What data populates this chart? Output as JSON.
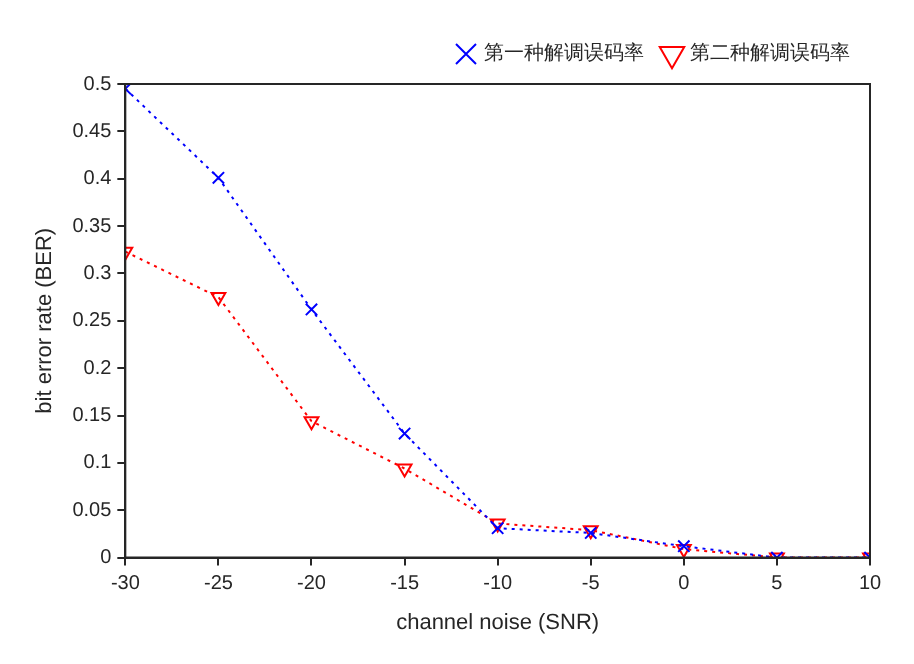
{
  "chart_data": {
    "type": "line",
    "xlabel": "channel noise (SNR)",
    "ylabel": "bit error rate (BER)",
    "x": [
      -30,
      -25,
      -20,
      -15,
      -10,
      -5,
      0,
      5,
      10
    ],
    "series": [
      {
        "name": "第一种解调误码率",
        "color": "#0000ff",
        "marker": "cross",
        "values": [
          0.495,
          0.401,
          0.262,
          0.131,
          0.031,
          0.026,
          0.012,
          0,
          0
        ]
      },
      {
        "name": "第二种解调误码率",
        "color": "#ff0000",
        "marker": "triangle",
        "values": [
          0.323,
          0.275,
          0.144,
          0.094,
          0.036,
          0.029,
          0.009,
          0,
          0
        ]
      }
    ],
    "xlim": [
      -30,
      10
    ],
    "xticks": [
      -30,
      -25,
      -20,
      -15,
      -10,
      -5,
      0,
      5,
      10
    ],
    "ylim": [
      0,
      0.5
    ],
    "yticks": [
      0,
      0.05,
      0.1,
      0.15,
      0.2,
      0.25,
      0.3,
      0.35,
      0.4,
      0.45,
      0.5
    ],
    "grid": false,
    "legend": "top right",
    "line_style": "dotted"
  }
}
